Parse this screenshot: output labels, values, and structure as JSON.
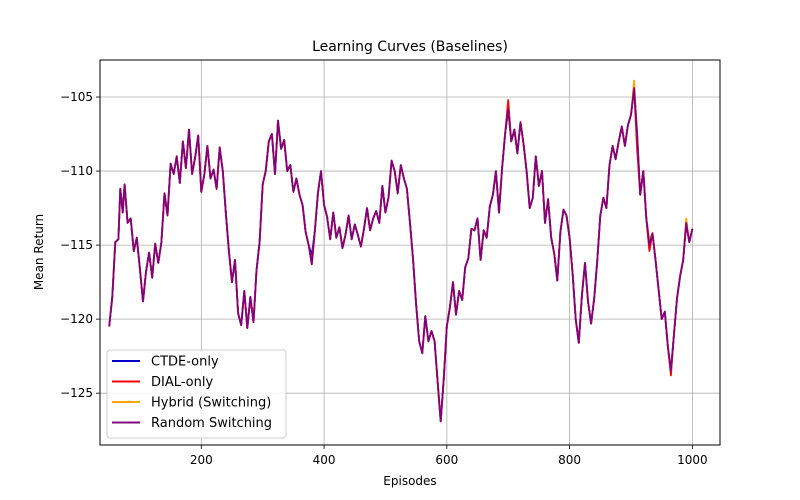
{
  "chart_data": {
    "type": "line",
    "title": "Learning Curves (Baselines)",
    "xlabel": "Episodes",
    "ylabel": "Mean Return",
    "xlim": [
      35,
      1045
    ],
    "ylim": [
      -128.5,
      -102.5
    ],
    "x_ticks": [
      200,
      400,
      600,
      800,
      1000
    ],
    "y_ticks": [
      -105,
      -110,
      -115,
      -120,
      -125
    ],
    "x_tick_labels": [
      "200",
      "400",
      "600",
      "800",
      "1000"
    ],
    "y_tick_labels": [
      "−105",
      "−110",
      "−115",
      "−120",
      "−125"
    ],
    "grid": true,
    "legend_position": "lower-left",
    "base_curve": [
      [
        50,
        -120.5
      ],
      [
        55,
        -118.5
      ],
      [
        60,
        -114.8
      ],
      [
        65,
        -114.6
      ],
      [
        68,
        -111.2
      ],
      [
        72,
        -112.8
      ],
      [
        75,
        -110.9
      ],
      [
        80,
        -113.5
      ],
      [
        85,
        -113.2
      ],
      [
        90,
        -115.4
      ],
      [
        95,
        -114.5
      ],
      [
        100,
        -116.6
      ],
      [
        105,
        -118.8
      ],
      [
        110,
        -116.8
      ],
      [
        115,
        -115.5
      ],
      [
        120,
        -117.2
      ],
      [
        125,
        -114.9
      ],
      [
        130,
        -116.2
      ],
      [
        135,
        -114.8
      ],
      [
        140,
        -111.5
      ],
      [
        145,
        -113.0
      ],
      [
        150,
        -109.5
      ],
      [
        155,
        -110.2
      ],
      [
        160,
        -109.0
      ],
      [
        165,
        -110.8
      ],
      [
        170,
        -108.0
      ],
      [
        175,
        -109.8
      ],
      [
        180,
        -107.2
      ],
      [
        185,
        -110.2
      ],
      [
        190,
        -109.1
      ],
      [
        195,
        -107.6
      ],
      [
        200,
        -111.4
      ],
      [
        205,
        -110.2
      ],
      [
        210,
        -108.3
      ],
      [
        215,
        -110.5
      ],
      [
        220,
        -109.9
      ],
      [
        225,
        -111.2
      ],
      [
        230,
        -108.4
      ],
      [
        235,
        -110.0
      ],
      [
        240,
        -112.8
      ],
      [
        245,
        -115.4
      ],
      [
        250,
        -117.5
      ],
      [
        255,
        -116.0
      ],
      [
        260,
        -119.6
      ],
      [
        265,
        -120.4
      ],
      [
        270,
        -118.1
      ],
      [
        275,
        -120.6
      ],
      [
        280,
        -118.5
      ],
      [
        285,
        -120.2
      ],
      [
        290,
        -116.7
      ],
      [
        295,
        -114.8
      ],
      [
        300,
        -110.9
      ],
      [
        305,
        -110.0
      ],
      [
        310,
        -108.0
      ],
      [
        315,
        -107.5
      ],
      [
        320,
        -110.2
      ],
      [
        325,
        -106.6
      ],
      [
        330,
        -108.5
      ],
      [
        335,
        -107.9
      ],
      [
        340,
        -110.0
      ],
      [
        345,
        -109.6
      ],
      [
        350,
        -111.4
      ],
      [
        355,
        -110.5
      ],
      [
        360,
        -111.6
      ],
      [
        365,
        -112.3
      ],
      [
        370,
        -114.1
      ],
      [
        375,
        -115.0
      ],
      [
        380,
        -116.3
      ],
      [
        385,
        -114.0
      ],
      [
        390,
        -111.5
      ],
      [
        395,
        -110.0
      ],
      [
        400,
        -112.3
      ],
      [
        405,
        -113.1
      ],
      [
        410,
        -114.6
      ],
      [
        415,
        -112.8
      ],
      [
        420,
        -114.5
      ],
      [
        425,
        -113.8
      ],
      [
        430,
        -115.2
      ],
      [
        435,
        -114.3
      ],
      [
        440,
        -113.0
      ],
      [
        445,
        -114.6
      ],
      [
        450,
        -113.6
      ],
      [
        455,
        -114.3
      ],
      [
        460,
        -115.1
      ],
      [
        465,
        -113.9
      ],
      [
        470,
        -112.5
      ],
      [
        475,
        -114.0
      ],
      [
        480,
        -113.2
      ],
      [
        485,
        -112.7
      ],
      [
        490,
        -113.5
      ],
      [
        495,
        -111.0
      ],
      [
        500,
        -112.8
      ],
      [
        505,
        -111.8
      ],
      [
        510,
        -109.3
      ],
      [
        515,
        -110.0
      ],
      [
        520,
        -111.5
      ],
      [
        525,
        -109.6
      ],
      [
        530,
        -110.5
      ],
      [
        535,
        -111.2
      ],
      [
        540,
        -113.5
      ],
      [
        545,
        -116.0
      ],
      [
        550,
        -119.0
      ],
      [
        555,
        -121.5
      ],
      [
        560,
        -122.3
      ],
      [
        565,
        -119.8
      ],
      [
        570,
        -121.5
      ],
      [
        575,
        -120.8
      ],
      [
        580,
        -121.5
      ],
      [
        585,
        -124.2
      ],
      [
        590,
        -126.9
      ],
      [
        595,
        -124.0
      ],
      [
        600,
        -120.5
      ],
      [
        605,
        -119.2
      ],
      [
        610,
        -117.5
      ],
      [
        615,
        -119.7
      ],
      [
        620,
        -118.1
      ],
      [
        625,
        -118.7
      ],
      [
        630,
        -116.5
      ],
      [
        635,
        -115.9
      ],
      [
        640,
        -113.9
      ],
      [
        645,
        -114.0
      ],
      [
        650,
        -113.2
      ],
      [
        655,
        -116.0
      ],
      [
        660,
        -114.0
      ],
      [
        665,
        -114.5
      ],
      [
        670,
        -112.4
      ],
      [
        675,
        -111.6
      ],
      [
        680,
        -110.0
      ],
      [
        685,
        -112.8
      ],
      [
        690,
        -109.8
      ],
      [
        695,
        -107.5
      ],
      [
        700,
        -105.8
      ],
      [
        705,
        -108.0
      ],
      [
        710,
        -107.2
      ],
      [
        715,
        -108.8
      ],
      [
        720,
        -106.7
      ],
      [
        725,
        -108.2
      ],
      [
        730,
        -110.0
      ],
      [
        735,
        -112.5
      ],
      [
        740,
        -111.8
      ],
      [
        745,
        -109.0
      ],
      [
        750,
        -111.0
      ],
      [
        755,
        -110.0
      ],
      [
        760,
        -113.5
      ],
      [
        765,
        -111.9
      ],
      [
        770,
        -114.5
      ],
      [
        775,
        -115.6
      ],
      [
        780,
        -117.4
      ],
      [
        785,
        -114.1
      ],
      [
        790,
        -112.6
      ],
      [
        795,
        -113.0
      ],
      [
        800,
        -114.5
      ],
      [
        805,
        -117.0
      ],
      [
        810,
        -120.0
      ],
      [
        815,
        -121.6
      ],
      [
        820,
        -118.4
      ],
      [
        825,
        -116.2
      ],
      [
        830,
        -118.8
      ],
      [
        835,
        -120.3
      ],
      [
        840,
        -118.6
      ],
      [
        845,
        -116.1
      ],
      [
        850,
        -113.0
      ],
      [
        855,
        -111.8
      ],
      [
        860,
        -112.5
      ],
      [
        865,
        -109.6
      ],
      [
        870,
        -108.3
      ],
      [
        875,
        -109.2
      ],
      [
        880,
        -108.0
      ],
      [
        885,
        -107.0
      ],
      [
        890,
        -108.3
      ],
      [
        895,
        -106.9
      ],
      [
        900,
        -106.2
      ],
      [
        905,
        -104.4
      ],
      [
        910,
        -107.5
      ],
      [
        915,
        -111.6
      ],
      [
        920,
        -110.0
      ],
      [
        925,
        -113.2
      ],
      [
        930,
        -115.0
      ],
      [
        935,
        -114.2
      ],
      [
        940,
        -116.0
      ],
      [
        945,
        -118.0
      ],
      [
        950,
        -120.0
      ],
      [
        955,
        -119.5
      ],
      [
        960,
        -121.8
      ],
      [
        965,
        -123.5
      ],
      [
        970,
        -121.0
      ],
      [
        975,
        -118.6
      ],
      [
        980,
        -117.1
      ],
      [
        985,
        -116.0
      ],
      [
        990,
        -113.5
      ],
      [
        995,
        -114.8
      ],
      [
        1000,
        -113.9
      ]
    ],
    "series": [
      {
        "name": "CTDE-only",
        "color": "#0000cd",
        "offsets": [
          [
            380,
            0.6
          ],
          [
            632,
            0.9
          ],
          [
            636,
            0.8
          ]
        ]
      },
      {
        "name": "DIAL-only",
        "color": "#ff0000",
        "offsets": [
          [
            700,
            0.6
          ],
          [
            910,
            -1.0
          ],
          [
            930,
            -0.4
          ],
          [
            965,
            -0.3
          ]
        ]
      },
      {
        "name": "Hybrid (Switching)",
        "color": "#ffa500",
        "offsets": [
          [
            905,
            0.5
          ],
          [
            930,
            0.4
          ],
          [
            990,
            0.3
          ]
        ]
      },
      {
        "name": "Random Switching",
        "color": "#800080",
        "offsets": []
      }
    ]
  }
}
